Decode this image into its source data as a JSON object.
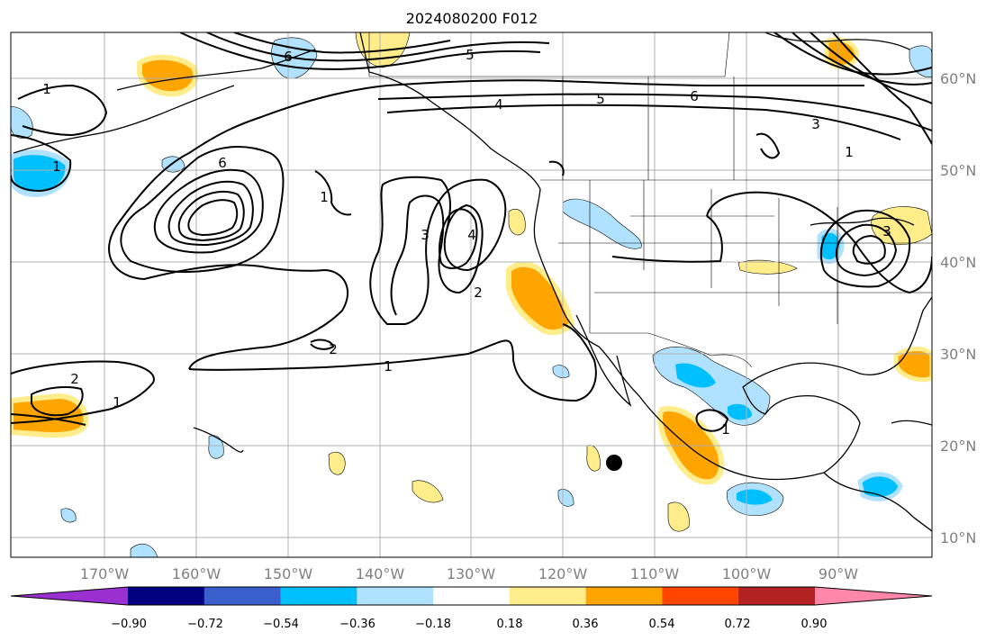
{
  "title": "2024080200 F012",
  "map": {
    "longitude_labels": [
      "170°W",
      "160°W",
      "150°W",
      "140°W",
      "130°W",
      "120°W",
      "110°W",
      "100°W",
      "90°W"
    ],
    "latitude_labels": [
      "60°N",
      "50°N",
      "40°N",
      "30°N",
      "20°N",
      "10°N"
    ],
    "contour_labels": [
      "1",
      "6",
      "1",
      "6",
      "5",
      "4",
      "5",
      "6",
      "3",
      "1",
      "1",
      "3",
      "4",
      "2",
      "2",
      "1",
      "2",
      "1",
      "3",
      "1"
    ],
    "marker": "black-dot"
  },
  "colorbar": {
    "tick_labels": [
      "−0.90",
      "−0.72",
      "−0.54",
      "−0.36",
      "−0.18",
      "0.18",
      "0.36",
      "0.54",
      "0.72",
      "0.90"
    ],
    "colors": [
      "#9b30d0",
      "#000080",
      "#3a5fcd",
      "#00bfff",
      "#b0e2ff",
      "#ffffff",
      "#ffec8b",
      "#ffa500",
      "#ff4500",
      "#b22222",
      "#ff88aa"
    ]
  }
}
